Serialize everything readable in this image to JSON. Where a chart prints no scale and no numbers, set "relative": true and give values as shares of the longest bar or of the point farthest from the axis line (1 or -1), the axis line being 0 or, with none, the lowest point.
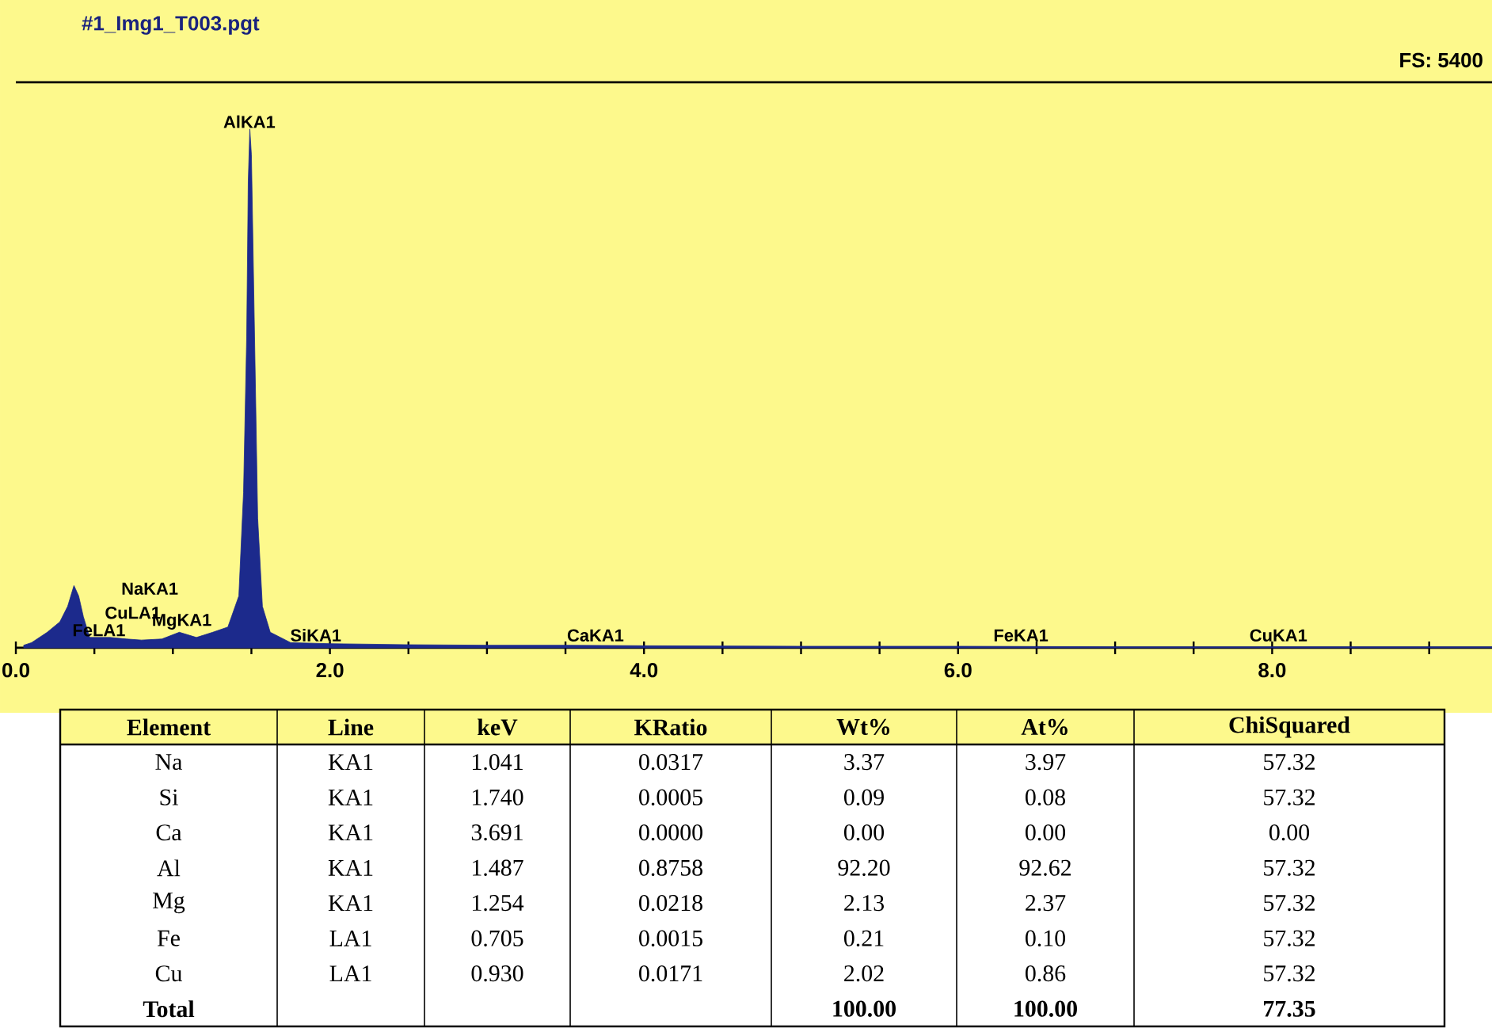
{
  "chart_data": {
    "type": "area",
    "title": "#1_Img1_T003.pgt",
    "relative": true,
    "color": "#1c2a8c",
    "x": [
      0.05,
      0.1,
      0.2,
      0.28,
      0.33,
      0.37,
      0.4,
      0.43,
      0.47,
      0.6,
      0.705,
      0.8,
      0.93,
      1.041,
      1.15,
      1.254,
      1.35,
      1.42,
      1.45,
      1.47,
      1.48,
      1.49,
      1.5,
      1.52,
      1.54,
      1.57,
      1.62,
      1.75,
      2.0,
      2.5,
      3.0,
      3.5,
      4.0,
      5.0,
      6.0,
      7.0,
      8.0,
      9.4
    ],
    "values": [
      0.005,
      0.01,
      0.03,
      0.05,
      0.08,
      0.12,
      0.1,
      0.06,
      0.02,
      0.02,
      0.017,
      0.015,
      0.017,
      0.03,
      0.02,
      0.03,
      0.04,
      0.1,
      0.3,
      0.6,
      0.9,
      1.0,
      0.95,
      0.6,
      0.25,
      0.08,
      0.03,
      0.01,
      0.008,
      0.006,
      0.005,
      0.005,
      0.004,
      0.003,
      0.003,
      0.002,
      0.002,
      0.002
    ],
    "xlim": [
      0,
      9.4
    ],
    "xticks": [
      {
        "value": 0,
        "label": "0.0"
      },
      {
        "value": 0.5,
        "label": null
      },
      {
        "value": 1,
        "label": null
      },
      {
        "value": 1.5,
        "label": null
      },
      {
        "value": 2,
        "label": "2.0"
      },
      {
        "value": 2.5,
        "label": null
      },
      {
        "value": 3,
        "label": null
      },
      {
        "value": 3.5,
        "label": null
      },
      {
        "value": 4,
        "label": "4.0"
      },
      {
        "value": 4.5,
        "label": null
      },
      {
        "value": 5,
        "label": null
      },
      {
        "value": 5.5,
        "label": null
      },
      {
        "value": 6,
        "label": "6.0"
      },
      {
        "value": 6.5,
        "label": null
      },
      {
        "value": 7,
        "label": null
      },
      {
        "value": 7.5,
        "label": null
      },
      {
        "value": 8,
        "label": "8.0"
      },
      {
        "value": 8.5,
        "label": null
      },
      {
        "value": 9,
        "label": null
      }
    ],
    "annotations": [
      "FS: 5400",
      {
        "text": "AlKA1",
        "x": 1.487,
        "y": 1.0
      },
      {
        "text": "FeLA1",
        "x": 0.705,
        "y": 0.017
      },
      {
        "text": "MgKA1",
        "x": 1.254,
        "y": 0.03
      },
      {
        "text": "CuLA1",
        "x": 0.93,
        "y": 0.017
      },
      {
        "text": "NaKA1",
        "x": 1.041,
        "y": 0.03
      },
      {
        "text": "SiKA1",
        "x": 1.74,
        "y": 0.01
      },
      {
        "text": "CaKA1",
        "x": 3.691,
        "y": 0.01
      },
      {
        "text": "FeKA1",
        "x": 6.4,
        "y": 0.01
      },
      {
        "text": "CuKA1",
        "x": 8.04,
        "y": 0.01
      },
      "Element",
      "Line",
      "keV",
      "KRatio",
      "Wt%",
      "At%",
      "ChiSquared",
      "Na",
      "KA1",
      "1.041",
      "0.0317",
      "3.37",
      "3.97",
      "57.32",
      "Si",
      "KA1",
      "1.740",
      "0.0005",
      "0.09",
      "0.08",
      "57.32",
      "Ca",
      "KA1",
      "3.691",
      "0.0000",
      "0.00",
      "0.00",
      "0.00",
      "Al",
      "KA1",
      "1.487",
      "0.8758",
      "92.20",
      "92.62",
      "57.32",
      "Mg",
      "KA1",
      "1.254",
      "0.0218",
      "2.13",
      "2.37",
      "57.32",
      "Fe",
      "LA1",
      "0.705",
      "0.0015",
      "0.21",
      "0.10",
      "57.32",
      "Cu",
      "LA1",
      "0.930",
      "0.0171",
      "2.02",
      "0.86",
      "57.32",
      "Total",
      null,
      null,
      null,
      "100.00",
      "100.00",
      "77.35"
    ]
  }
}
